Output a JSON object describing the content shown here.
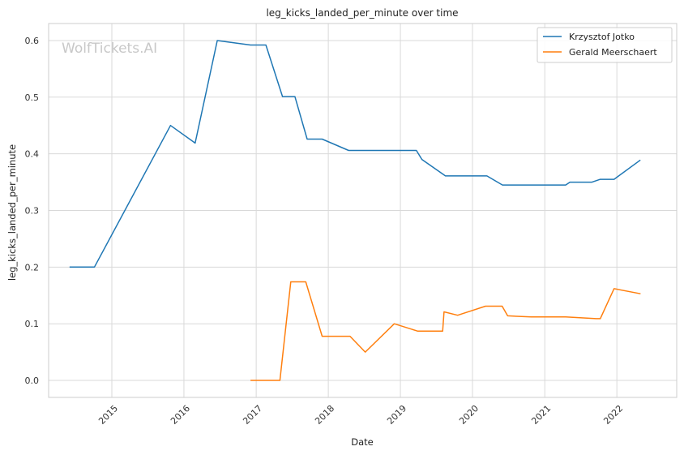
{
  "chart_data": {
    "type": "line",
    "title": "leg_kicks_landed_per_minute over time",
    "xlabel": "Date",
    "ylabel": "leg_kicks_landed_per_minute",
    "watermark": "WolfTickets.AI",
    "xlim": [
      "2014-02-15",
      "2022-10-31"
    ],
    "ylim": [
      -0.03,
      0.63
    ],
    "x_ticks": [
      "2015-01-01",
      "2016-01-01",
      "2017-01-01",
      "2018-01-01",
      "2019-01-01",
      "2020-01-01",
      "2021-01-01",
      "2022-01-01"
    ],
    "x_tick_labels": [
      "2015",
      "2016",
      "2017",
      "2018",
      "2019",
      "2020",
      "2021",
      "2022"
    ],
    "y_ticks": [
      0.0,
      0.1,
      0.2,
      0.3,
      0.4,
      0.5,
      0.6
    ],
    "y_tick_labels": [
      "0.0",
      "0.1",
      "0.2",
      "0.3",
      "0.4",
      "0.5",
      "0.6"
    ],
    "grid": true,
    "legend_position": "top-right",
    "series": [
      {
        "name": "Krzysztof Jotko",
        "color": "#1f77b4",
        "points": [
          [
            "2014-06-01",
            0.2
          ],
          [
            "2014-10-05",
            0.2
          ],
          [
            "2015-10-25",
            0.45
          ],
          [
            "2016-02-27",
            0.419
          ],
          [
            "2016-06-18",
            0.6
          ],
          [
            "2016-12-03",
            0.592
          ],
          [
            "2017-02-19",
            0.592
          ],
          [
            "2017-05-14",
            0.501
          ],
          [
            "2017-07-16",
            0.501
          ],
          [
            "2017-09-16",
            0.426
          ],
          [
            "2017-12-01",
            0.426
          ],
          [
            "2018-04-14",
            0.406
          ],
          [
            "2019-03-23",
            0.406
          ],
          [
            "2019-04-20",
            0.39
          ],
          [
            "2019-08-17",
            0.361
          ],
          [
            "2020-03-14",
            0.361
          ],
          [
            "2020-06-01",
            0.345
          ],
          [
            "2021-04-17",
            0.345
          ],
          [
            "2021-05-08",
            0.35
          ],
          [
            "2021-08-28",
            0.35
          ],
          [
            "2021-10-09",
            0.355
          ],
          [
            "2021-12-18",
            0.355
          ],
          [
            "2022-04-30",
            0.389
          ]
        ]
      },
      {
        "name": "Gerald Meerschaert",
        "color": "#ff7f0e",
        "points": [
          [
            "2016-12-03",
            0.0
          ],
          [
            "2017-05-01",
            0.0
          ],
          [
            "2017-06-25",
            0.174
          ],
          [
            "2017-09-09",
            0.174
          ],
          [
            "2017-12-01",
            0.078
          ],
          [
            "2018-04-21",
            0.078
          ],
          [
            "2018-07-07",
            0.05
          ],
          [
            "2018-12-01",
            0.1
          ],
          [
            "2019-03-30",
            0.087
          ],
          [
            "2019-08-03",
            0.087
          ],
          [
            "2019-08-10",
            0.121
          ],
          [
            "2019-10-18",
            0.115
          ],
          [
            "2020-03-07",
            0.131
          ],
          [
            "2020-05-30",
            0.131
          ],
          [
            "2020-06-27",
            0.114
          ],
          [
            "2020-10-24",
            0.112
          ],
          [
            "2021-04-17",
            0.112
          ],
          [
            "2021-09-18",
            0.109
          ],
          [
            "2021-10-09",
            0.109
          ],
          [
            "2021-12-18",
            0.162
          ],
          [
            "2022-05-01",
            0.153
          ]
        ]
      }
    ]
  }
}
